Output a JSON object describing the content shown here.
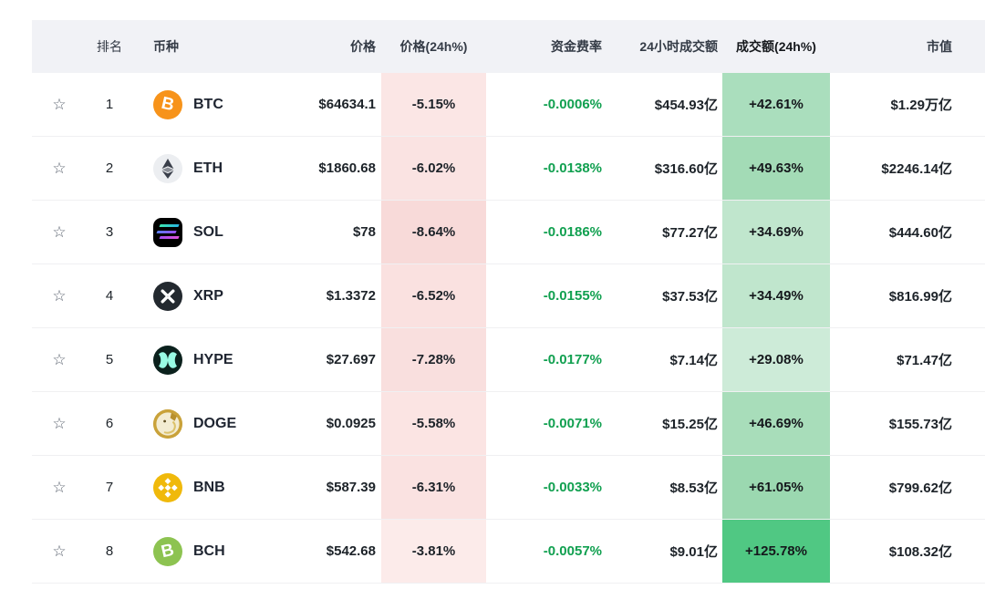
{
  "icons": {
    "favorite": "☆"
  },
  "colors": {
    "header_bg": "#f1f2f6",
    "row_border": "#f0f0f2",
    "positive_text": "#11a050",
    "body_text": "#1d2329",
    "header_text": "#343b46"
  },
  "header": {
    "rank": "排名",
    "coin": "币种",
    "price": "价格",
    "price_chg": "价格(24h%)",
    "funding": "资金费率",
    "volume": "24小时成交额",
    "vol_chg": "成交额(24h%)",
    "mcap": "市值"
  },
  "rows": [
    {
      "rank": "1",
      "symbol": "BTC",
      "icon": {
        "name": "btc-coin-icon",
        "type": "btc",
        "bg": "#f7931a",
        "fg": "#ffffff"
      },
      "price": "$64634.1",
      "price_chg": "-5.15%",
      "price_chg_bg": "#fbe6e5",
      "funding": "-0.0006%",
      "volume": "$454.93亿",
      "vol_chg": "+42.61%",
      "vol_chg_bg": "#aadebd",
      "mcap": "$1.29万亿"
    },
    {
      "rank": "2",
      "symbol": "ETH",
      "icon": {
        "name": "eth-coin-icon",
        "type": "eth",
        "bg": "#eceef1",
        "fg": "#3a3f4a"
      },
      "price": "$1860.68",
      "price_chg": "-6.02%",
      "price_chg_bg": "#fae3e2",
      "funding": "-0.0138%",
      "volume": "$316.60亿",
      "vol_chg": "+49.63%",
      "vol_chg_bg": "#a3dbb6",
      "mcap": "$2246.14亿"
    },
    {
      "rank": "3",
      "symbol": "SOL",
      "icon": {
        "name": "sol-coin-icon",
        "type": "sol",
        "bg": "#000000",
        "fg": "#14f195"
      },
      "price": "$78",
      "price_chg": "-8.64%",
      "price_chg_bg": "#f8dad9",
      "funding": "-0.0186%",
      "volume": "$77.27亿",
      "vol_chg": "+34.69%",
      "vol_chg_bg": "#c0e6cd",
      "mcap": "$444.60亿"
    },
    {
      "rank": "4",
      "symbol": "XRP",
      "icon": {
        "name": "xrp-coin-icon",
        "type": "xrp",
        "bg": "#23292f",
        "fg": "#ffffff"
      },
      "price": "$1.3372",
      "price_chg": "-6.52%",
      "price_chg_bg": "#fae1e0",
      "funding": "-0.0155%",
      "volume": "$37.53亿",
      "vol_chg": "+34.49%",
      "vol_chg_bg": "#c0e6cd",
      "mcap": "$816.99亿"
    },
    {
      "rank": "5",
      "symbol": "HYPE",
      "icon": {
        "name": "hype-coin-icon",
        "type": "hype",
        "bg": "#0b211d",
        "fg": "#98fce4"
      },
      "price": "$27.697",
      "price_chg": "-7.28%",
      "price_chg_bg": "#f9dfde",
      "funding": "-0.0177%",
      "volume": "$7.14亿",
      "vol_chg": "+29.08%",
      "vol_chg_bg": "#cdebd8",
      "mcap": "$71.47亿"
    },
    {
      "rank": "6",
      "symbol": "DOGE",
      "icon": {
        "name": "doge-coin-icon",
        "type": "doge",
        "bg": "#c9a23a",
        "fg": "#f3ecd2"
      },
      "price": "$0.0925",
      "price_chg": "-5.58%",
      "price_chg_bg": "#fbe4e3",
      "funding": "-0.0071%",
      "volume": "$15.25亿",
      "vol_chg": "+46.69%",
      "vol_chg_bg": "#a8ddba",
      "mcap": "$155.73亿"
    },
    {
      "rank": "7",
      "symbol": "BNB",
      "icon": {
        "name": "bnb-coin-icon",
        "type": "bnb",
        "bg": "#f0b90b",
        "fg": "#ffffff"
      },
      "price": "$587.39",
      "price_chg": "-6.31%",
      "price_chg_bg": "#fae2e1",
      "funding": "-0.0033%",
      "volume": "$8.53亿",
      "vol_chg": "+61.05%",
      "vol_chg_bg": "#9bd8b0",
      "mcap": "$799.62亿"
    },
    {
      "rank": "8",
      "symbol": "BCH",
      "icon": {
        "name": "bch-coin-icon",
        "type": "bch",
        "bg": "#8dc351",
        "fg": "#ffffff"
      },
      "price": "$542.68",
      "price_chg": "-3.81%",
      "price_chg_bg": "#fcebea",
      "funding": "-0.0057%",
      "volume": "$9.01亿",
      "vol_chg": "+125.78%",
      "vol_chg_bg": "#50c883",
      "mcap": "$108.32亿"
    }
  ]
}
